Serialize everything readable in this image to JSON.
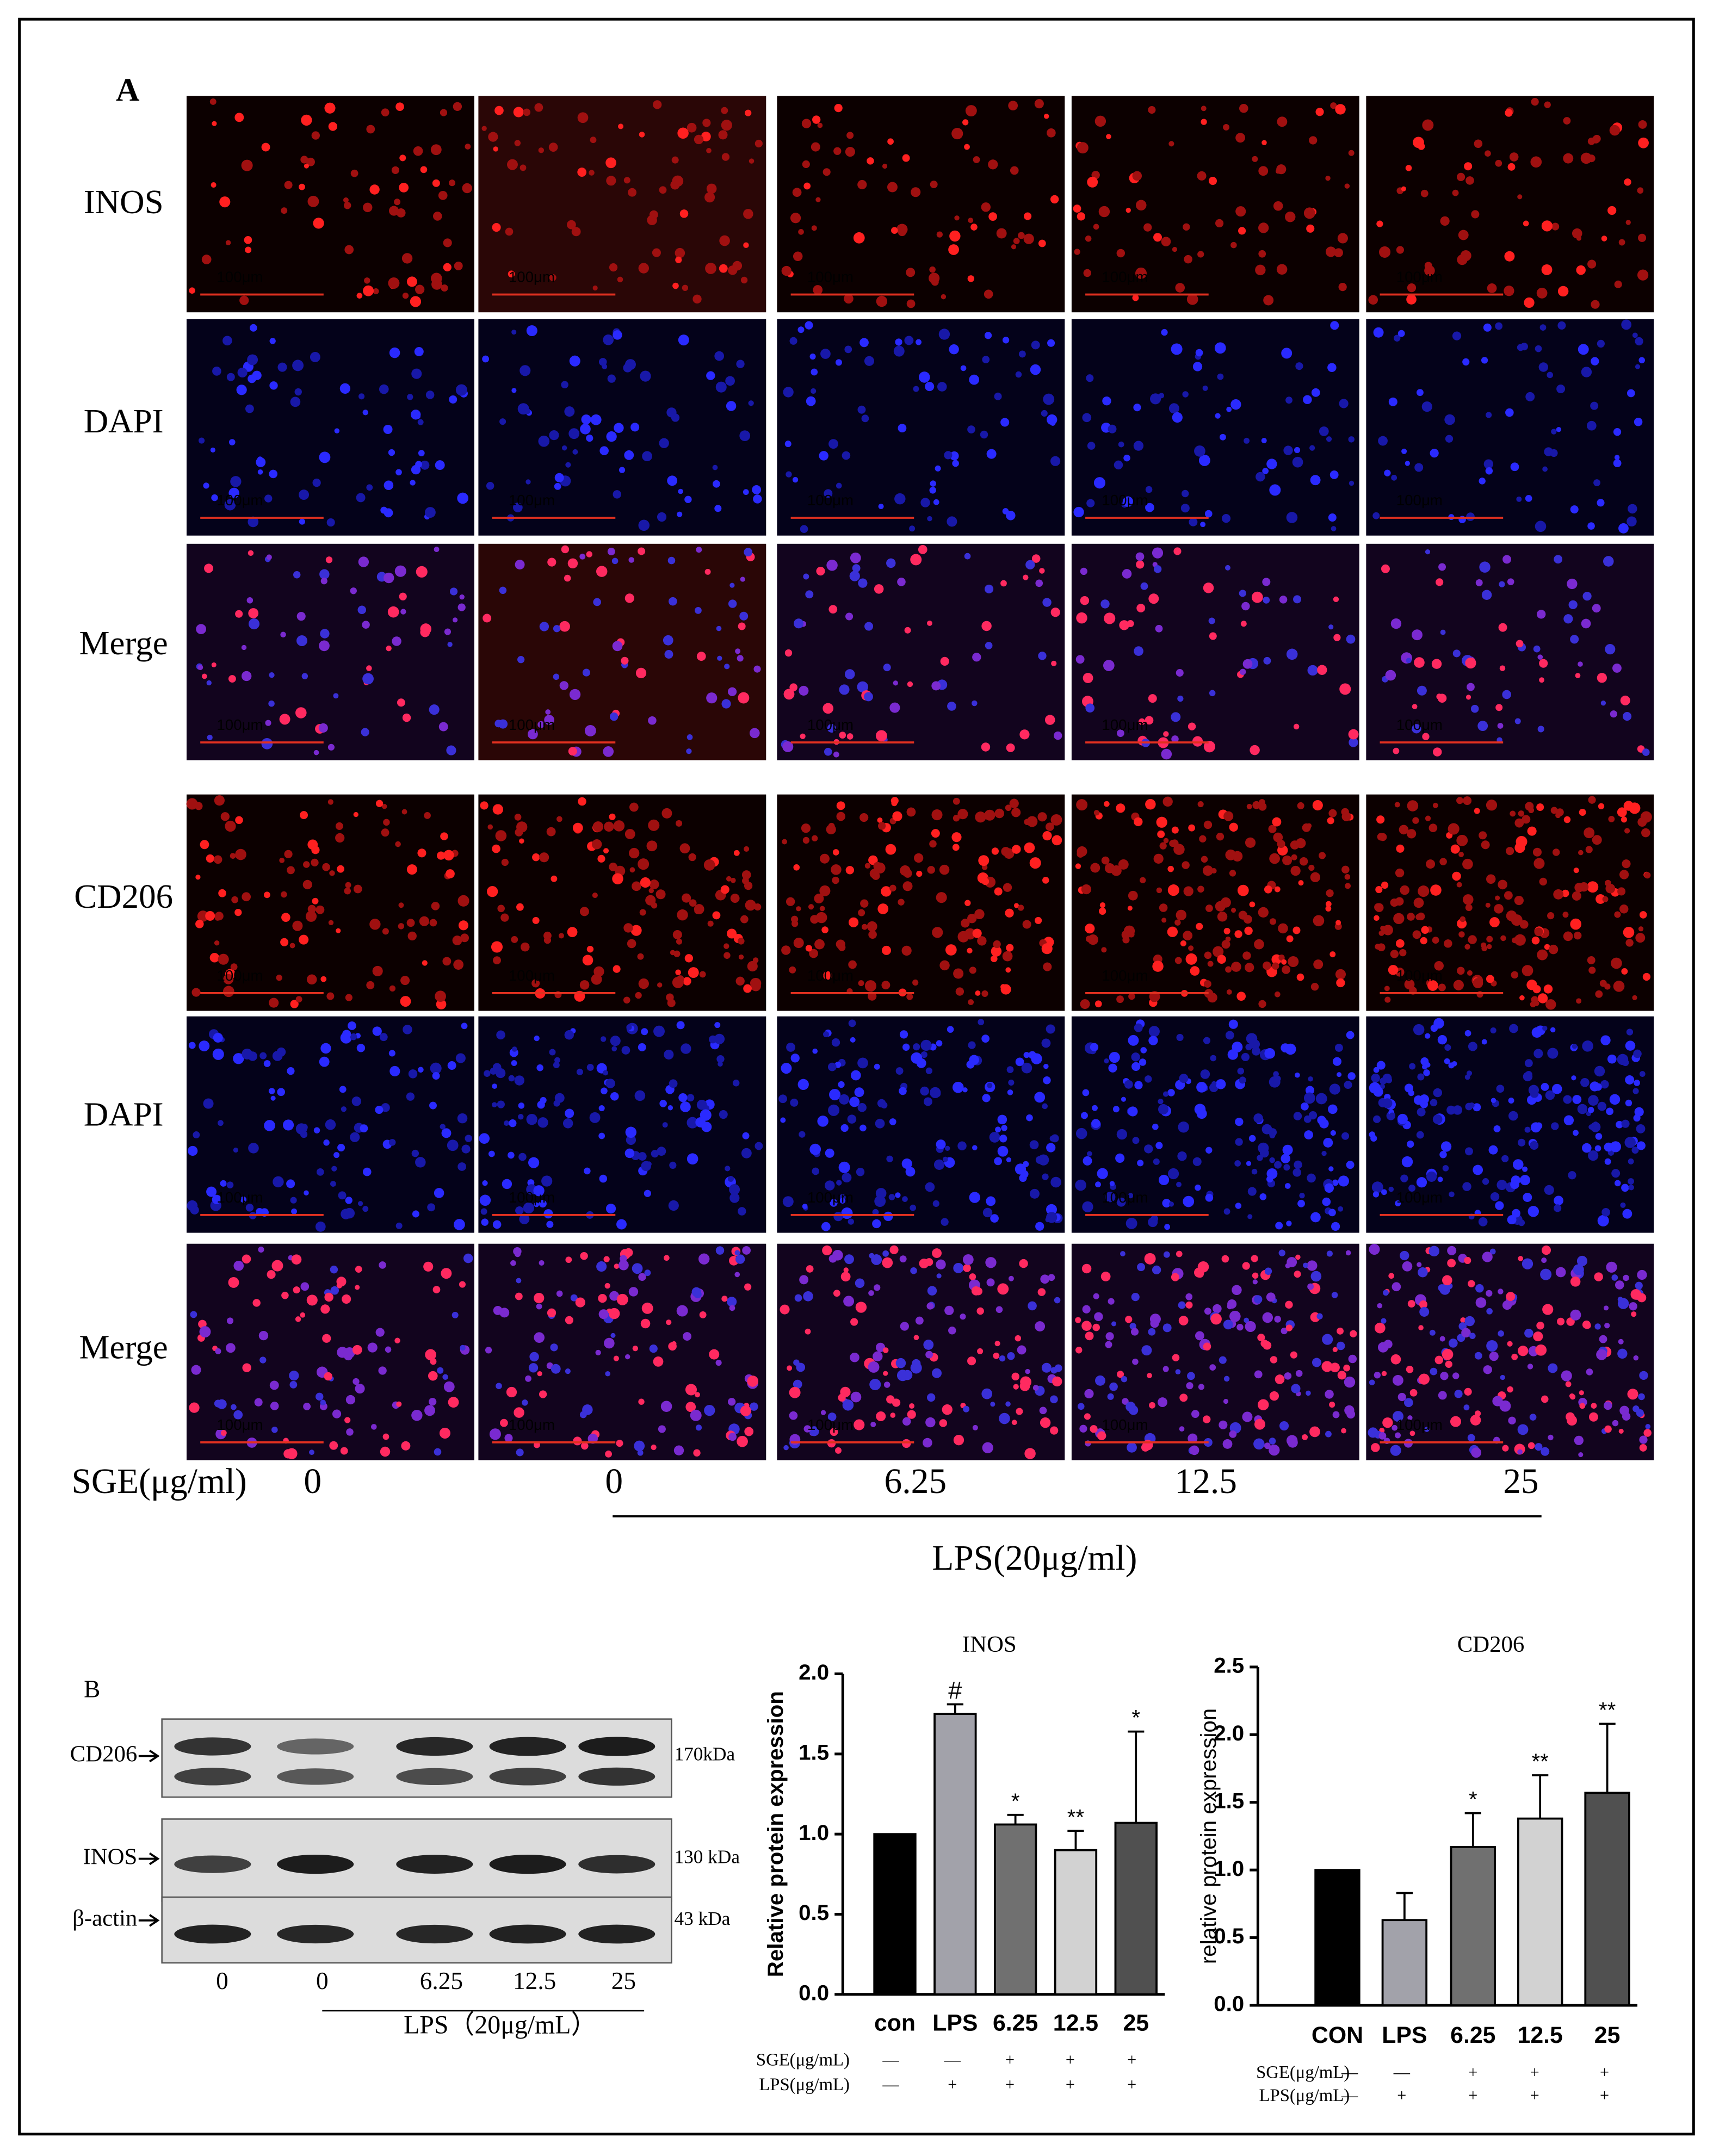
{
  "panel_a": {
    "label": "A",
    "rows": [
      "INOS",
      "DAPI",
      "Merge",
      "CD206",
      "DAPI",
      "Merge"
    ],
    "scale_bar": "100μm",
    "dose_label": "SGE(μg/ml)",
    "doses": [
      "0",
      "0",
      "6.25",
      "12.5",
      "25"
    ],
    "group_label": "LPS(20μg/ml)"
  },
  "panel_b": {
    "label": "B",
    "bands": [
      {
        "name": "CD206",
        "size": "170kDa"
      },
      {
        "name": "INOS",
        "size": "130 kDa"
      },
      {
        "name": "β-actin",
        "size": "43 kDa"
      }
    ],
    "lanes": [
      "0",
      "0",
      "6.25",
      "12.5",
      "25"
    ],
    "group_label": "LPS（20μg/mL）"
  },
  "chart_data": [
    {
      "type": "bar",
      "title": "INOS",
      "y_label": "Relative protein expression",
      "categories": [
        "con",
        "LPS",
        "6.25",
        "12.5",
        "25"
      ],
      "values": [
        1.0,
        1.75,
        1.06,
        0.9,
        1.07
      ],
      "errors": [
        0,
        0.06,
        0.06,
        0.12,
        0.57
      ],
      "significance": [
        null,
        "#",
        "*",
        "**",
        "*"
      ],
      "colors": [
        "#000000",
        "#a2a2aa",
        "#707070",
        "#d2d2d2",
        "#505050"
      ],
      "ylim": [
        0,
        2.0
      ],
      "yticks": [
        {
          "value": 0,
          "label": "0.0"
        },
        {
          "value": 0.5,
          "label": "0.5"
        },
        {
          "value": 1,
          "label": "1.0"
        },
        {
          "value": 1.5,
          "label": "1.5"
        },
        {
          "value": 2,
          "label": "2.0"
        }
      ],
      "treatments": [
        {
          "name": "SGE(μg/mL)",
          "marks": [
            "—",
            "—",
            "+",
            "+",
            "+"
          ]
        },
        {
          "name": "LPS(μg/mL)",
          "marks": [
            "—",
            "+",
            "+",
            "+",
            "+"
          ]
        }
      ]
    },
    {
      "type": "bar",
      "title": "CD206",
      "y_label": "relative protein expression",
      "categories": [
        "CON",
        "LPS",
        "6.25",
        "12.5",
        "25"
      ],
      "values": [
        1.0,
        0.63,
        1.17,
        1.38,
        1.57
      ],
      "errors": [
        0,
        0.2,
        0.25,
        0.32,
        0.51
      ],
      "significance": [
        null,
        null,
        "*",
        "**",
        "**"
      ],
      "colors": [
        "#000000",
        "#a2a2aa",
        "#707070",
        "#d2d2d2",
        "#505050"
      ],
      "ylim": [
        0,
        2.5
      ],
      "yticks": [
        {
          "value": 0,
          "label": "0.0"
        },
        {
          "value": 0.5,
          "label": "0.5"
        },
        {
          "value": 1,
          "label": "1.0"
        },
        {
          "value": 1.5,
          "label": "1.5"
        },
        {
          "value": 2,
          "label": "2.0"
        },
        {
          "value": 2.5,
          "label": "2.5"
        }
      ],
      "treatments": [
        {
          "name": "SGE(μg/mL)",
          "marks": [
            "—",
            "—",
            "+",
            "+",
            "+"
          ]
        },
        {
          "name": "LPS(μg/mL)",
          "marks": [
            "—",
            "+",
            "+",
            "+",
            "+"
          ]
        }
      ]
    }
  ]
}
